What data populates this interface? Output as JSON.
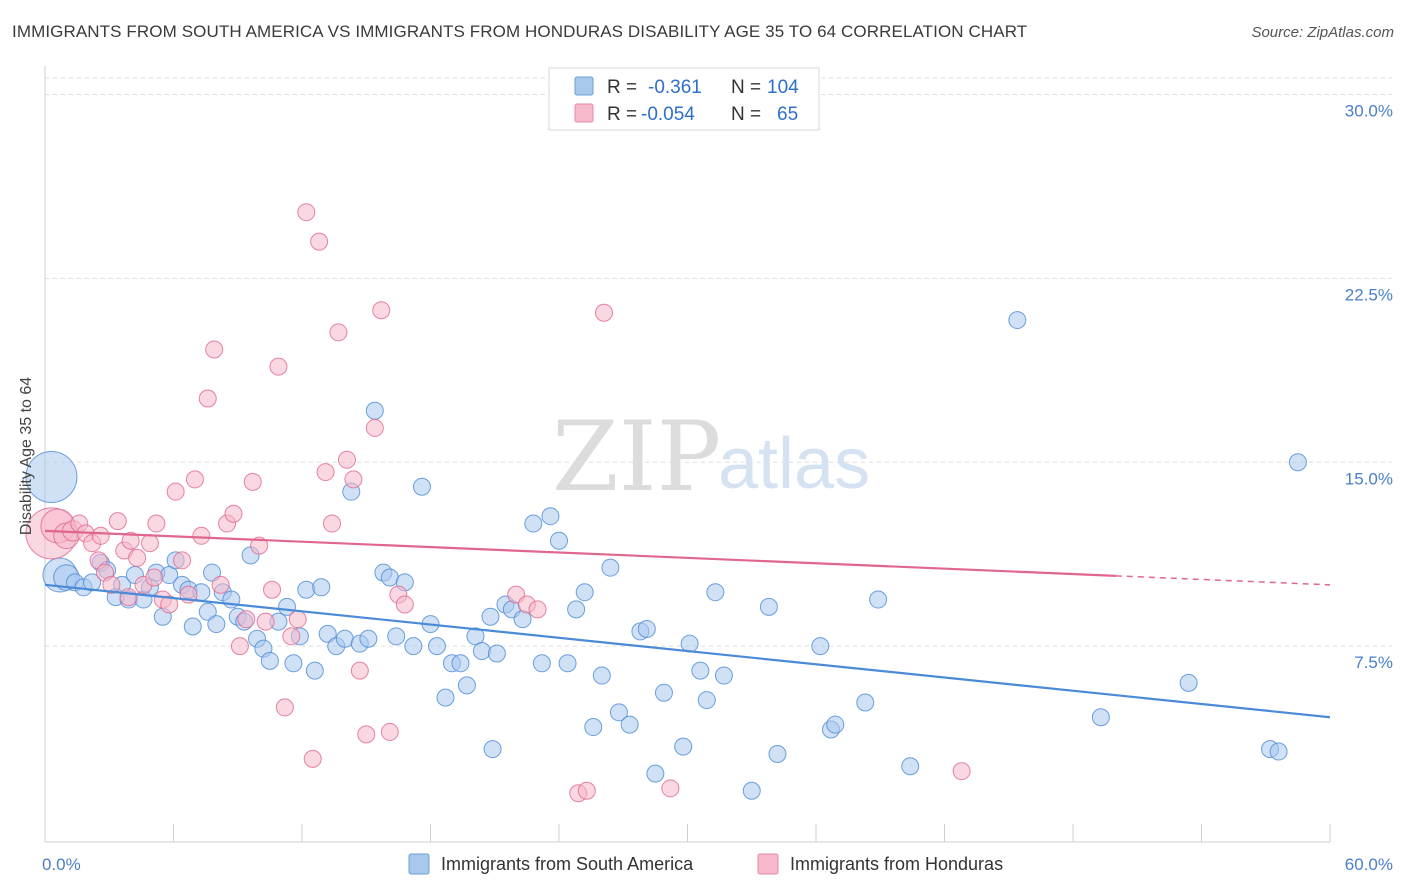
{
  "title": "IMMIGRANTS FROM SOUTH AMERICA VS IMMIGRANTS FROM HONDURAS DISABILITY AGE 35 TO 64 CORRELATION CHART",
  "source": "Source: ZipAtlas.com",
  "watermark": {
    "zip": "ZIP",
    "atlas": "atlas"
  },
  "legend": {
    "r_label": "R =",
    "n_label": "N =",
    "rows": [
      {
        "r": "-0.361",
        "n": "104",
        "color": "#a9c8ee"
      },
      {
        "r": "-0.054",
        "n": "65",
        "color": "#f6b8cb"
      }
    ]
  },
  "bottom_legend": [
    {
      "label": "Immigrants from South America",
      "color": "#a9c8ee"
    },
    {
      "label": "Immigrants from Honduras",
      "color": "#f6b8cb"
    }
  ],
  "chart_data": {
    "type": "scatter",
    "title": "IMMIGRANTS FROM SOUTH AMERICA VS IMMIGRANTS FROM HONDURAS DISABILITY AGE 35 TO 64 CORRELATION CHART",
    "xlabel": "",
    "ylabel": "Disability Age 35 to 64",
    "xlim": [
      0,
      60
    ],
    "ylim": [
      0,
      31
    ],
    "x_tick_labels": [
      {
        "value": 0,
        "label": "0.0%"
      },
      {
        "value": 60,
        "label": "60.0%"
      }
    ],
    "y_ticks": [
      {
        "value": 7.5,
        "label": "7.5%"
      },
      {
        "value": 15,
        "label": "15.0%"
      },
      {
        "value": 22.5,
        "label": "22.5%"
      },
      {
        "value": 30,
        "label": "30.0%"
      }
    ],
    "series": [
      {
        "name": "Immigrants from South America",
        "color": "#4a8ad6",
        "fill": "#a9c8ee",
        "trend": {
          "x0": 0,
          "y0": 10.0,
          "x1": 60,
          "y1": 4.6
        },
        "points": [
          [
            0.3,
            14.4,
            3
          ],
          [
            0.7,
            10.4,
            2
          ],
          [
            1.0,
            10.3,
            1.5
          ],
          [
            1.4,
            10.1,
            1
          ],
          [
            1.8,
            9.9,
            1
          ],
          [
            2.2,
            10.1,
            1
          ],
          [
            2.6,
            10.9,
            1
          ],
          [
            2.9,
            10.6,
            1
          ],
          [
            3.3,
            9.5,
            1
          ],
          [
            3.6,
            10.0,
            1
          ],
          [
            3.9,
            9.4,
            1
          ],
          [
            4.2,
            10.4,
            1
          ],
          [
            4.6,
            9.4,
            1
          ],
          [
            4.9,
            9.9,
            1
          ],
          [
            5.2,
            10.5,
            1
          ],
          [
            5.5,
            8.7,
            1
          ],
          [
            5.8,
            10.4,
            1
          ],
          [
            6.1,
            11.0,
            1
          ],
          [
            6.4,
            10.0,
            1
          ],
          [
            6.7,
            9.8,
            1
          ],
          [
            6.9,
            8.3,
            1
          ],
          [
            7.3,
            9.7,
            1
          ],
          [
            7.6,
            8.9,
            1
          ],
          [
            7.8,
            10.5,
            1
          ],
          [
            8.0,
            8.4,
            1
          ],
          [
            8.3,
            9.7,
            1
          ],
          [
            8.7,
            9.4,
            1
          ],
          [
            9.0,
            8.7,
            1
          ],
          [
            9.3,
            8.5,
            1
          ],
          [
            9.6,
            11.2,
            1
          ],
          [
            9.9,
            7.8,
            1
          ],
          [
            10.2,
            7.4,
            1
          ],
          [
            10.5,
            6.9,
            1
          ],
          [
            10.9,
            8.5,
            1
          ],
          [
            11.3,
            9.1,
            1
          ],
          [
            11.6,
            6.8,
            1
          ],
          [
            11.9,
            7.9,
            1
          ],
          [
            12.2,
            9.8,
            1
          ],
          [
            12.6,
            6.5,
            1
          ],
          [
            12.9,
            9.9,
            1
          ],
          [
            13.2,
            8.0,
            1
          ],
          [
            13.6,
            7.5,
            1
          ],
          [
            14.0,
            7.8,
            1
          ],
          [
            14.3,
            13.8,
            1
          ],
          [
            14.7,
            7.6,
            1
          ],
          [
            15.1,
            7.8,
            1
          ],
          [
            15.4,
            17.1,
            1
          ],
          [
            15.8,
            10.5,
            1
          ],
          [
            16.1,
            10.3,
            1
          ],
          [
            16.4,
            7.9,
            1
          ],
          [
            16.8,
            10.1,
            1
          ],
          [
            17.2,
            7.5,
            1
          ],
          [
            17.6,
            14.0,
            1
          ],
          [
            18.0,
            8.4,
            1
          ],
          [
            18.3,
            7.5,
            1
          ],
          [
            18.7,
            5.4,
            1
          ],
          [
            19.0,
            6.8,
            1
          ],
          [
            19.4,
            6.8,
            1
          ],
          [
            19.7,
            5.9,
            1
          ],
          [
            20.1,
            7.9,
            1
          ],
          [
            20.4,
            7.3,
            1
          ],
          [
            20.8,
            8.7,
            1
          ],
          [
            21.1,
            7.2,
            1
          ],
          [
            21.5,
            9.2,
            1
          ],
          [
            21.8,
            9.0,
            1
          ],
          [
            22.3,
            8.6,
            1
          ],
          [
            22.8,
            12.5,
            1
          ],
          [
            23.2,
            6.8,
            1
          ],
          [
            23.6,
            12.8,
            1
          ],
          [
            24.0,
            11.8,
            1
          ],
          [
            24.4,
            6.8,
            1
          ],
          [
            24.8,
            9.0,
            1
          ],
          [
            25.2,
            9.7,
            1
          ],
          [
            25.6,
            4.2,
            1
          ],
          [
            26.0,
            6.3,
            1
          ],
          [
            26.4,
            10.7,
            1
          ],
          [
            26.8,
            4.8,
            1
          ],
          [
            27.3,
            4.3,
            1
          ],
          [
            27.8,
            8.1,
            1
          ],
          [
            28.1,
            8.2,
            1
          ],
          [
            28.5,
            2.3,
            1
          ],
          [
            28.9,
            5.6,
            1
          ],
          [
            29.8,
            3.4,
            1
          ],
          [
            30.1,
            7.6,
            1
          ],
          [
            30.6,
            6.5,
            1
          ],
          [
            30.9,
            5.3,
            1
          ],
          [
            31.3,
            9.7,
            1
          ],
          [
            31.7,
            6.3,
            1
          ],
          [
            33.0,
            1.6,
            1
          ],
          [
            33.8,
            9.1,
            1
          ],
          [
            34.2,
            3.1,
            1
          ],
          [
            36.2,
            7.5,
            1
          ],
          [
            36.7,
            4.1,
            1
          ],
          [
            36.9,
            4.3,
            1
          ],
          [
            38.3,
            5.2,
            1
          ],
          [
            38.9,
            9.4,
            1
          ],
          [
            40.4,
            2.6,
            1
          ],
          [
            45.4,
            20.8,
            1
          ],
          [
            49.3,
            4.6,
            1
          ],
          [
            53.4,
            6.0,
            1
          ],
          [
            57.2,
            3.3,
            1
          ],
          [
            57.6,
            3.2,
            1
          ],
          [
            58.5,
            15.0,
            1
          ],
          [
            20.9,
            3.3,
            1
          ]
        ]
      },
      {
        "name": "Immigrants from Honduras",
        "color": "#e0668e",
        "fill": "#f6b8cb",
        "trend": {
          "x0": 0,
          "y0": 12.2,
          "x1": 60,
          "y1": 10.0,
          "solid_end_x": 50
        },
        "points": [
          [
            0.3,
            12.1,
            3
          ],
          [
            0.6,
            12.4,
            2
          ],
          [
            1.0,
            12.0,
            1.5
          ],
          [
            1.3,
            12.2,
            1.2
          ],
          [
            1.6,
            12.5,
            1
          ],
          [
            1.9,
            12.1,
            1
          ],
          [
            2.2,
            11.7,
            1
          ],
          [
            2.5,
            11.0,
            1
          ],
          [
            2.8,
            10.5,
            1
          ],
          [
            3.1,
            10.0,
            1
          ],
          [
            3.4,
            12.6,
            1
          ],
          [
            3.7,
            11.4,
            1
          ],
          [
            4.0,
            11.8,
            1
          ],
          [
            4.3,
            11.1,
            1
          ],
          [
            4.6,
            10.0,
            1
          ],
          [
            4.9,
            11.7,
            1
          ],
          [
            5.2,
            12.5,
            1
          ],
          [
            5.5,
            9.4,
            1
          ],
          [
            5.8,
            9.2,
            1
          ],
          [
            6.1,
            13.8,
            1
          ],
          [
            6.4,
            11.0,
            1
          ],
          [
            6.7,
            9.6,
            1
          ],
          [
            7.0,
            14.3,
            1
          ],
          [
            7.3,
            12.0,
            1
          ],
          [
            7.6,
            17.6,
            1
          ],
          [
            7.9,
            19.6,
            1
          ],
          [
            8.2,
            10.0,
            1
          ],
          [
            8.5,
            12.5,
            1
          ],
          [
            8.8,
            12.9,
            1
          ],
          [
            9.1,
            7.5,
            1
          ],
          [
            9.4,
            8.6,
            1
          ],
          [
            9.7,
            14.2,
            1
          ],
          [
            10.0,
            11.6,
            1
          ],
          [
            10.3,
            8.5,
            1
          ],
          [
            10.6,
            9.8,
            1
          ],
          [
            10.9,
            18.9,
            1
          ],
          [
            11.2,
            5.0,
            1
          ],
          [
            11.5,
            7.9,
            1
          ],
          [
            11.8,
            8.6,
            1
          ],
          [
            12.2,
            25.2,
            1
          ],
          [
            12.5,
            2.9,
            1
          ],
          [
            12.8,
            24.0,
            1
          ],
          [
            13.1,
            14.6,
            1
          ],
          [
            13.4,
            12.5,
            1
          ],
          [
            13.7,
            20.3,
            1
          ],
          [
            14.1,
            15.1,
            1
          ],
          [
            14.4,
            14.3,
            1
          ],
          [
            14.7,
            6.5,
            1
          ],
          [
            15.0,
            3.9,
            1
          ],
          [
            15.4,
            16.4,
            1
          ],
          [
            15.7,
            21.2,
            1
          ],
          [
            16.1,
            4.0,
            1
          ],
          [
            16.5,
            9.6,
            1
          ],
          [
            16.8,
            9.2,
            1
          ],
          [
            22.0,
            9.6,
            1
          ],
          [
            22.5,
            9.2,
            1
          ],
          [
            23.0,
            9.0,
            1
          ],
          [
            24.9,
            1.5,
            1
          ],
          [
            25.3,
            1.6,
            1
          ],
          [
            26.1,
            21.1,
            1
          ],
          [
            29.2,
            1.7,
            1
          ],
          [
            42.8,
            2.4,
            1
          ],
          [
            2.6,
            12.0,
            1
          ],
          [
            3.9,
            9.5,
            1
          ],
          [
            5.1,
            10.3,
            1
          ]
        ]
      }
    ]
  }
}
